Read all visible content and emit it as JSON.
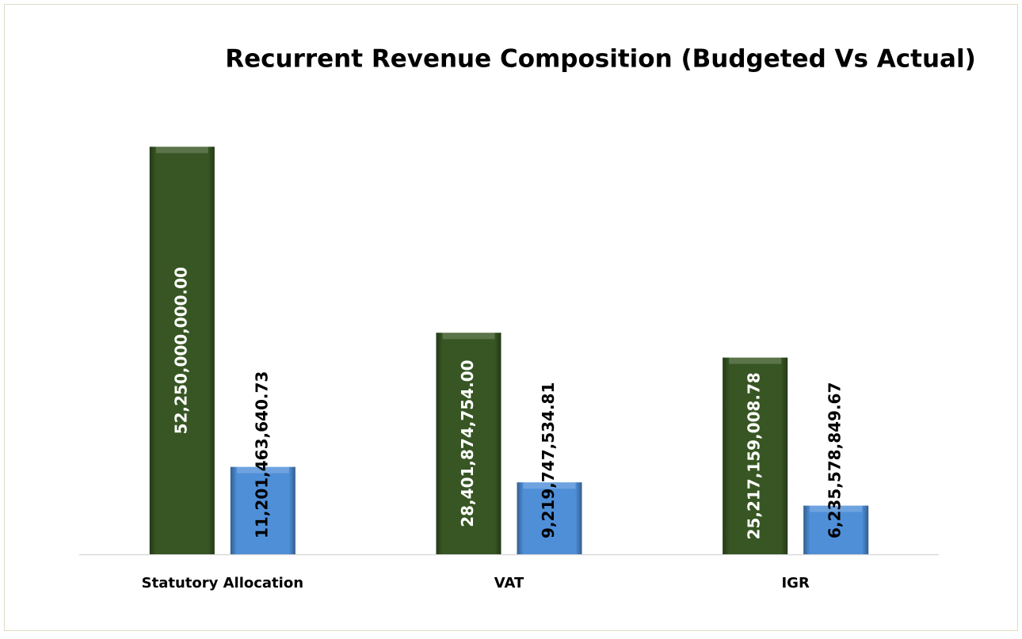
{
  "chart_data": {
    "type": "bar",
    "title": "Recurrent Revenue Composition (Budgeted Vs Actual)",
    "categories": [
      "Statutory Allocation",
      "VAT",
      "IGR"
    ],
    "series": [
      {
        "color": "#375623",
        "label_color": "#ffffff",
        "values": [
          52250000000.0,
          28401874754.0,
          25217159008.78
        ],
        "value_labels": [
          "52,250,000,000.00",
          "28,401,874,754.00",
          "25,217,159,008.78"
        ]
      },
      {
        "color": "#4f8fd8",
        "label_color": "#000000",
        "values": [
          11201463640.73,
          9219747534.81,
          6235578849.67
        ],
        "value_labels": [
          "11,201,463,640.73",
          "9,219,747,534.81",
          "6,235,578,849.67"
        ]
      }
    ],
    "ylim": [
      0,
      60000000000
    ]
  }
}
